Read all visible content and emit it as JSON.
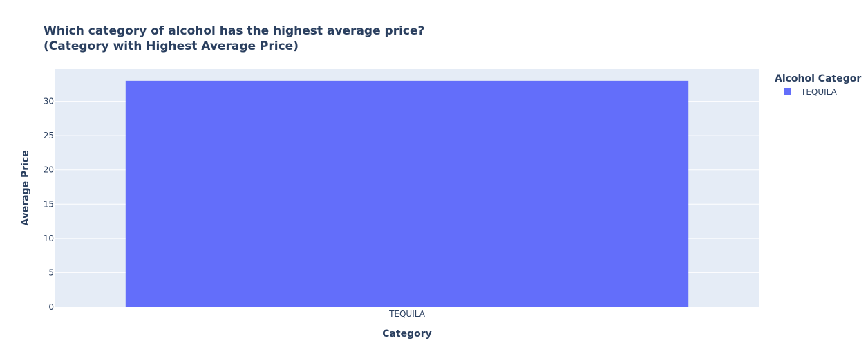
{
  "chart_data": {
    "type": "bar",
    "title": "Which category of alcohol has the highest average price?",
    "subtitle": "(Category with Highest Average Price)",
    "xlabel": "Category",
    "ylabel": "Average Price",
    "categories": [
      "TEQUILA"
    ],
    "values": [
      33.0
    ],
    "ylim": [
      0,
      34.7
    ],
    "yticks": [
      0,
      5,
      10,
      15,
      20,
      25,
      30
    ],
    "grid": true,
    "legend": {
      "title": "Alcohol Categor",
      "position": "top-right",
      "entries": [
        "TEQUILA"
      ]
    },
    "colors": {
      "bar": "#636efa",
      "plot_bg": "#e5ecf6",
      "grid": "#ffffff",
      "text": "#2a3f5f"
    }
  }
}
